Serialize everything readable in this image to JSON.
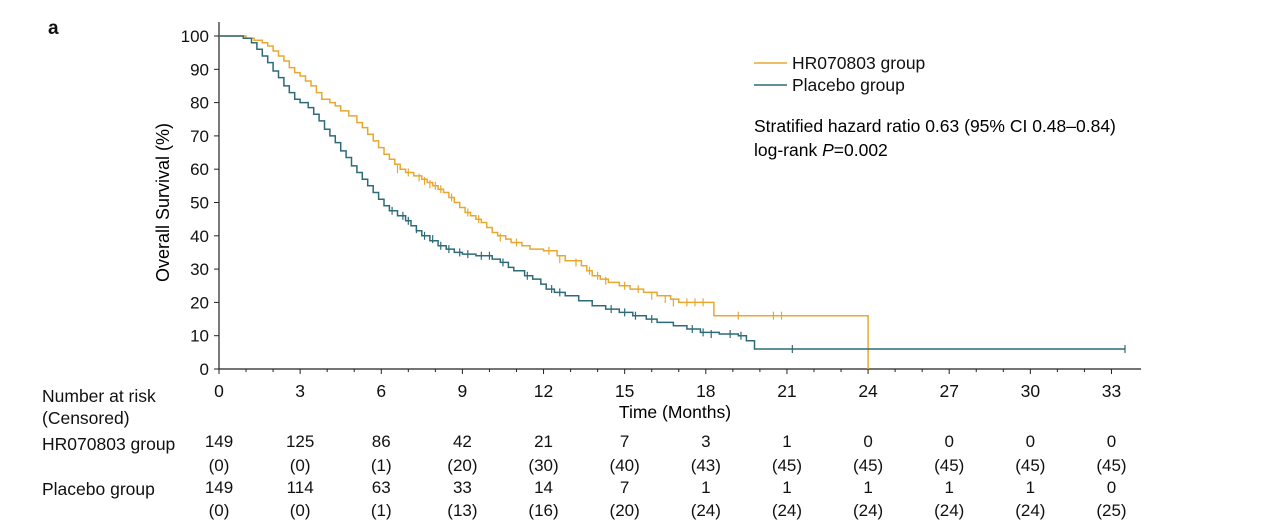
{
  "panel_label": "a",
  "colors": {
    "hr_group": "#e8a830",
    "placebo_group": "#2e6b78",
    "axis": "#222222"
  },
  "chart_data": {
    "type": "line",
    "subtype": "kaplan-meier",
    "xlabel": "Time (Months)",
    "ylabel": "Overall Survival (%)",
    "xlim": [
      0,
      33.5
    ],
    "ylim": [
      0,
      100
    ],
    "xticks": [
      0,
      3,
      6,
      9,
      12,
      15,
      18,
      21,
      24,
      27,
      30,
      33
    ],
    "yticks": [
      0,
      10,
      20,
      30,
      40,
      50,
      60,
      70,
      80,
      90,
      100
    ],
    "grid": false,
    "legend_position": "top-right",
    "legend": [
      "HR070803 group",
      "Placebo group"
    ],
    "annotation_line1": "Stratified hazard ratio 0.63 (95% CI 0.48–0.84)",
    "annotation_line2_prefix": "log-rank ",
    "annotation_line2_italic": "P",
    "annotation_line2_suffix": "=0.002",
    "series": [
      {
        "name": "HR070803 group",
        "steps": [
          [
            0,
            100
          ],
          [
            1.0,
            99.3
          ],
          [
            1.3,
            98.7
          ],
          [
            1.6,
            98
          ],
          [
            1.8,
            97
          ],
          [
            2.0,
            95.5
          ],
          [
            2.2,
            94
          ],
          [
            2.4,
            92.5
          ],
          [
            2.6,
            90.5
          ],
          [
            2.8,
            89
          ],
          [
            3.0,
            88
          ],
          [
            3.2,
            86.5
          ],
          [
            3.4,
            85
          ],
          [
            3.6,
            83
          ],
          [
            3.8,
            81
          ],
          [
            4.1,
            80
          ],
          [
            4.3,
            79
          ],
          [
            4.5,
            77.5
          ],
          [
            4.8,
            76
          ],
          [
            5.1,
            74
          ],
          [
            5.3,
            72.5
          ],
          [
            5.5,
            70.5
          ],
          [
            5.7,
            68.5
          ],
          [
            5.9,
            66.5
          ],
          [
            6.1,
            64.5
          ],
          [
            6.3,
            63
          ],
          [
            6.5,
            61.5
          ],
          [
            6.7,
            60
          ],
          [
            6.9,
            59
          ],
          [
            7.2,
            58
          ],
          [
            7.5,
            57
          ],
          [
            7.7,
            56
          ],
          [
            7.9,
            55
          ],
          [
            8.1,
            54
          ],
          [
            8.3,
            53
          ],
          [
            8.5,
            51.5
          ],
          [
            8.7,
            50
          ],
          [
            8.9,
            48.5
          ],
          [
            9.1,
            47
          ],
          [
            9.3,
            46
          ],
          [
            9.5,
            45
          ],
          [
            9.7,
            44
          ],
          [
            9.9,
            42.5
          ],
          [
            10.1,
            41
          ],
          [
            10.3,
            40
          ],
          [
            10.6,
            39
          ],
          [
            10.8,
            38
          ],
          [
            11.2,
            37
          ],
          [
            11.5,
            36
          ],
          [
            12.0,
            35.5
          ],
          [
            12.5,
            34
          ],
          [
            12.8,
            32.5
          ],
          [
            13.4,
            31
          ],
          [
            13.6,
            29.5
          ],
          [
            13.8,
            28
          ],
          [
            14.1,
            27
          ],
          [
            14.4,
            26
          ],
          [
            14.8,
            25
          ],
          [
            15.2,
            24
          ],
          [
            15.7,
            23
          ],
          [
            16.2,
            22
          ],
          [
            16.7,
            21
          ],
          [
            17.0,
            20
          ],
          [
            18.2,
            20
          ],
          [
            18.3,
            16
          ],
          [
            24.0,
            16
          ],
          [
            24.0,
            0
          ]
        ],
        "end_x": 24.0,
        "censors": [
          [
            6.6,
            60
          ],
          [
            7.0,
            59
          ],
          [
            7.4,
            57.5
          ],
          [
            7.6,
            56.5
          ],
          [
            7.8,
            55.5
          ],
          [
            8.0,
            55
          ],
          [
            8.2,
            54
          ],
          [
            8.6,
            51.5
          ],
          [
            9.2,
            47
          ],
          [
            9.6,
            45
          ],
          [
            10.4,
            39.5
          ],
          [
            11.0,
            38
          ],
          [
            12.2,
            35.5
          ],
          [
            12.6,
            33
          ],
          [
            13.2,
            32
          ],
          [
            13.7,
            29.5
          ],
          [
            14.0,
            28
          ],
          [
            14.3,
            26.5
          ],
          [
            15.0,
            25
          ],
          [
            15.5,
            24
          ],
          [
            16.0,
            22
          ],
          [
            16.5,
            21
          ],
          [
            16.8,
            20
          ],
          [
            17.3,
            20
          ],
          [
            17.6,
            20
          ],
          [
            17.9,
            20
          ],
          [
            19.2,
            16
          ],
          [
            20.5,
            16
          ],
          [
            20.8,
            16
          ]
        ]
      },
      {
        "name": "Placebo group",
        "steps": [
          [
            0,
            100
          ],
          [
            0.9,
            99.3
          ],
          [
            1.2,
            98
          ],
          [
            1.4,
            96
          ],
          [
            1.6,
            94
          ],
          [
            1.8,
            92
          ],
          [
            2.0,
            89.5
          ],
          [
            2.2,
            87.5
          ],
          [
            2.4,
            85
          ],
          [
            2.6,
            83
          ],
          [
            2.8,
            81
          ],
          [
            3.0,
            80
          ],
          [
            3.3,
            78.5
          ],
          [
            3.5,
            76.5
          ],
          [
            3.7,
            74.5
          ],
          [
            3.9,
            72
          ],
          [
            4.1,
            70
          ],
          [
            4.3,
            68
          ],
          [
            4.5,
            65.5
          ],
          [
            4.7,
            63.5
          ],
          [
            4.9,
            61
          ],
          [
            5.1,
            59
          ],
          [
            5.3,
            57
          ],
          [
            5.5,
            55
          ],
          [
            5.7,
            53
          ],
          [
            5.9,
            51
          ],
          [
            6.1,
            49
          ],
          [
            6.3,
            47.5
          ],
          [
            6.6,
            46
          ],
          [
            6.9,
            44.5
          ],
          [
            7.1,
            43
          ],
          [
            7.3,
            41.5
          ],
          [
            7.5,
            40
          ],
          [
            7.8,
            38.5
          ],
          [
            8.1,
            37
          ],
          [
            8.4,
            36
          ],
          [
            8.7,
            35
          ],
          [
            9.0,
            34.5
          ],
          [
            9.5,
            34
          ],
          [
            10.1,
            33
          ],
          [
            10.4,
            32
          ],
          [
            10.7,
            30.5
          ],
          [
            10.9,
            29.5
          ],
          [
            11.3,
            28
          ],
          [
            11.6,
            27
          ],
          [
            11.9,
            25.5
          ],
          [
            12.1,
            24
          ],
          [
            12.4,
            23
          ],
          [
            12.8,
            22
          ],
          [
            13.3,
            20.5
          ],
          [
            13.8,
            19
          ],
          [
            14.3,
            18
          ],
          [
            14.8,
            17
          ],
          [
            15.3,
            16
          ],
          [
            15.8,
            15
          ],
          [
            16.2,
            14
          ],
          [
            16.8,
            13
          ],
          [
            17.3,
            12
          ],
          [
            17.8,
            11
          ],
          [
            18.5,
            10.5
          ],
          [
            19.2,
            10
          ],
          [
            19.5,
            8.5
          ],
          [
            19.8,
            6
          ],
          [
            33.5,
            6
          ]
        ],
        "end_x": 33.5,
        "censors": [
          [
            6.4,
            47.5
          ],
          [
            6.8,
            46
          ],
          [
            7.0,
            44.5
          ],
          [
            7.3,
            42
          ],
          [
            7.6,
            40
          ],
          [
            7.9,
            39
          ],
          [
            8.2,
            37
          ],
          [
            8.5,
            36
          ],
          [
            8.9,
            35
          ],
          [
            9.2,
            34.5
          ],
          [
            9.7,
            34
          ],
          [
            10.0,
            34
          ],
          [
            10.5,
            32
          ],
          [
            11.4,
            28
          ],
          [
            12.3,
            24
          ],
          [
            12.6,
            23
          ],
          [
            14.5,
            18
          ],
          [
            15.0,
            17
          ],
          [
            15.4,
            16
          ],
          [
            16.0,
            15
          ],
          [
            17.5,
            12
          ],
          [
            17.9,
            11
          ],
          [
            18.2,
            10.5
          ],
          [
            18.9,
            10.5
          ],
          [
            19.3,
            10
          ],
          [
            21.2,
            6
          ],
          [
            33.5,
            6
          ]
        ]
      }
    ]
  },
  "risk_table": {
    "title_line1": "Number at risk",
    "title_line2": "(Censored)",
    "x_times": [
      0,
      3,
      6,
      9,
      12,
      15,
      18,
      21,
      24,
      27,
      30,
      33
    ],
    "groups": [
      {
        "label": "HR070803 group",
        "at_risk": [
          "149",
          "125",
          "86",
          "42",
          "21",
          "7",
          "3",
          "1",
          "0",
          "0",
          "0",
          "0"
        ],
        "censored": [
          "(0)",
          "(0)",
          "(1)",
          "(20)",
          "(30)",
          "(40)",
          "(43)",
          "(45)",
          "(45)",
          "(45)",
          "(45)",
          "(45)"
        ]
      },
      {
        "label": "Placebo group",
        "at_risk": [
          "149",
          "114",
          "63",
          "33",
          "14",
          "7",
          "1",
          "1",
          "1",
          "1",
          "1",
          "0"
        ],
        "censored": [
          "(0)",
          "(0)",
          "(1)",
          "(13)",
          "(16)",
          "(20)",
          "(24)",
          "(24)",
          "(24)",
          "(24)",
          "(24)",
          "(25)"
        ]
      }
    ]
  }
}
